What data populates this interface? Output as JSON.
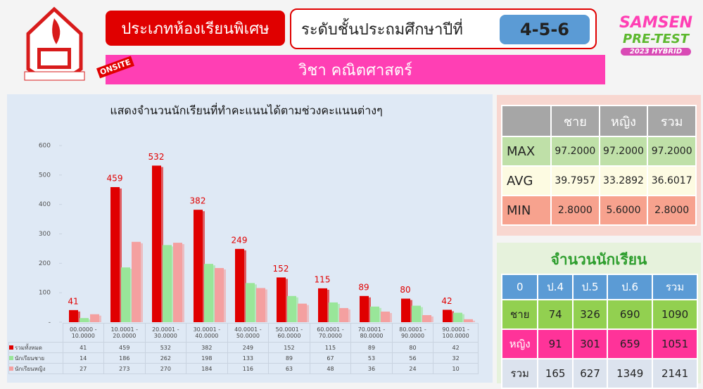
{
  "header": {
    "type_label": "ประเภทห้องเรียนพิเศษ",
    "level_label": "ระดับชั้นประถมศึกษาปีที่",
    "level": "4-5-6",
    "subject": "วิชา คณิตศาสตร์",
    "onsite": "ONSITE",
    "brand": "SAMSEN",
    "brand2": "PRE-TEST",
    "brand3": "2023 HYBRID"
  },
  "chart_data": {
    "type": "bar",
    "title": "แสดงจำนวนนักเรียนที่ทำคะแนนได้ตามช่วงคะแนนต่างๆ",
    "categories": [
      "00.0000 - 10.0000",
      "10.0001 - 20.0000",
      "20.0001 - 30.0000",
      "30.0001 - 40.0000",
      "40.0001 - 50.0000",
      "50.0001 - 60.0000",
      "60.0001 - 70.0000",
      "70.0001 - 80.0000",
      "80.0001 - 90.0000",
      "90.0001 - 100.0000"
    ],
    "series": [
      {
        "name": "รวมทั้งหมด",
        "color": "#e00000",
        "values": [
          41,
          459,
          532,
          382,
          249,
          152,
          115,
          89,
          80,
          42
        ]
      },
      {
        "name": "นักเรียนชาย",
        "color": "#99e699",
        "values": [
          14,
          186,
          262,
          198,
          133,
          89,
          67,
          53,
          56,
          32
        ]
      },
      {
        "name": "นักเรียนหญิง",
        "color": "#f4a0a0",
        "values": [
          27,
          273,
          270,
          184,
          116,
          63,
          48,
          36,
          24,
          10
        ]
      }
    ],
    "ylim": [
      0,
      600
    ],
    "yticks": [
      {
        "value": 0,
        "label": "-"
      },
      100,
      200,
      300,
      400,
      500,
      600
    ],
    "data_labels_series": 0
  },
  "stats": {
    "columns": [
      "ชาย",
      "หญิง",
      "รวม"
    ],
    "rows": [
      {
        "label": "MAX",
        "values": [
          "97.2000",
          "97.2000",
          "97.2000"
        ]
      },
      {
        "label": "AVG",
        "values": [
          "39.7957",
          "33.2892",
          "36.6017"
        ]
      },
      {
        "label": "MIN",
        "values": [
          "2.8000",
          "5.6000",
          "2.8000"
        ]
      }
    ]
  },
  "students": {
    "title": "จำนวนนักเรียน",
    "columns": [
      "0",
      "ป.4",
      "ป.5",
      "ป.6",
      "รวม"
    ],
    "rows": [
      [
        "ชาย",
        "74",
        "326",
        "690",
        "1090"
      ],
      [
        "หญิง",
        "91",
        "301",
        "659",
        "1051"
      ],
      [
        "รวม",
        "165",
        "627",
        "1349",
        "2141"
      ]
    ]
  }
}
